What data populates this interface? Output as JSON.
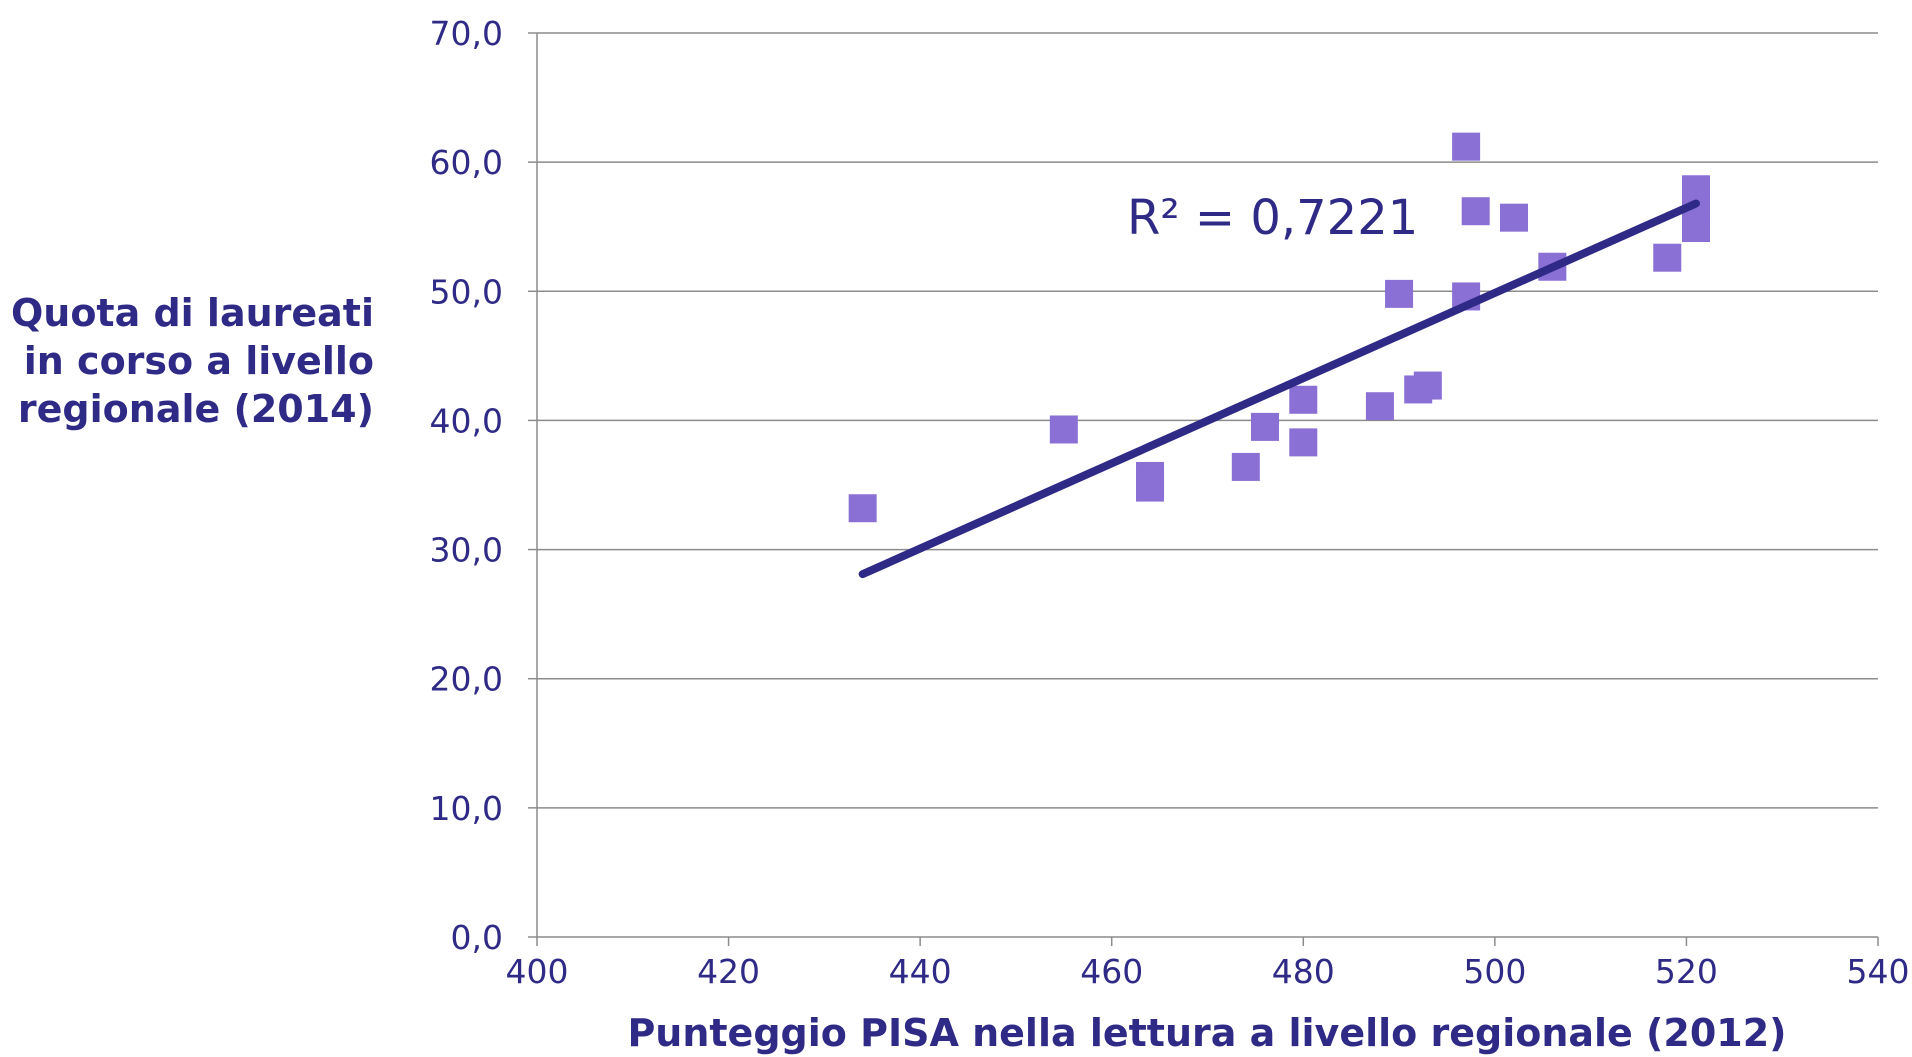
{
  "chart_data": {
    "type": "scatter",
    "title": "",
    "xlabel": "Punteggio PISA nella lettura a livello regionale (2012)",
    "ylabel_lines": [
      "Quota di laureati",
      "in corso a livello",
      "regionale (2014)"
    ],
    "xlim": [
      400,
      540
    ],
    "ylim": [
      0,
      70
    ],
    "x_ticks": [
      "400",
      "420",
      "440",
      "460",
      "480",
      "500",
      "520",
      "540"
    ],
    "y_ticks": [
      "0,0",
      "10,0",
      "20,0",
      "30,0",
      "40,0",
      "50,0",
      "60,0",
      "70,0"
    ],
    "grid": "horizontal",
    "legend": "none",
    "series": [
      {
        "points": [
          {
            "x": 434,
            "y": 33.2
          },
          {
            "x": 455,
            "y": 39.3
          },
          {
            "x": 464,
            "y": 35.7
          },
          {
            "x": 464,
            "y": 34.8
          },
          {
            "x": 474,
            "y": 36.4
          },
          {
            "x": 476,
            "y": 39.5
          },
          {
            "x": 480,
            "y": 41.6
          },
          {
            "x": 480,
            "y": 38.3
          },
          {
            "x": 488,
            "y": 41.1
          },
          {
            "x": 490,
            "y": 49.8
          },
          {
            "x": 492,
            "y": 42.4
          },
          {
            "x": 493,
            "y": 42.7
          },
          {
            "x": 497,
            "y": 61.2
          },
          {
            "x": 497,
            "y": 49.6
          },
          {
            "x": 498,
            "y": 56.2
          },
          {
            "x": 502,
            "y": 55.7
          },
          {
            "x": 506,
            "y": 51.9
          },
          {
            "x": 518,
            "y": 52.6
          },
          {
            "x": 521,
            "y": 57.9
          },
          {
            "x": 521,
            "y": 56.5
          },
          {
            "x": 521,
            "y": 54.9
          }
        ]
      }
    ],
    "trendline": {
      "x": [
        434,
        521
      ],
      "y": [
        28.1,
        56.8
      ]
    },
    "r_squared_label": "R² = 0,7221",
    "colors": {
      "marker": "#8a6fd4",
      "trendline": "#2e2a86",
      "text": "#2e2a86",
      "grid": "#8c8c8c"
    }
  }
}
